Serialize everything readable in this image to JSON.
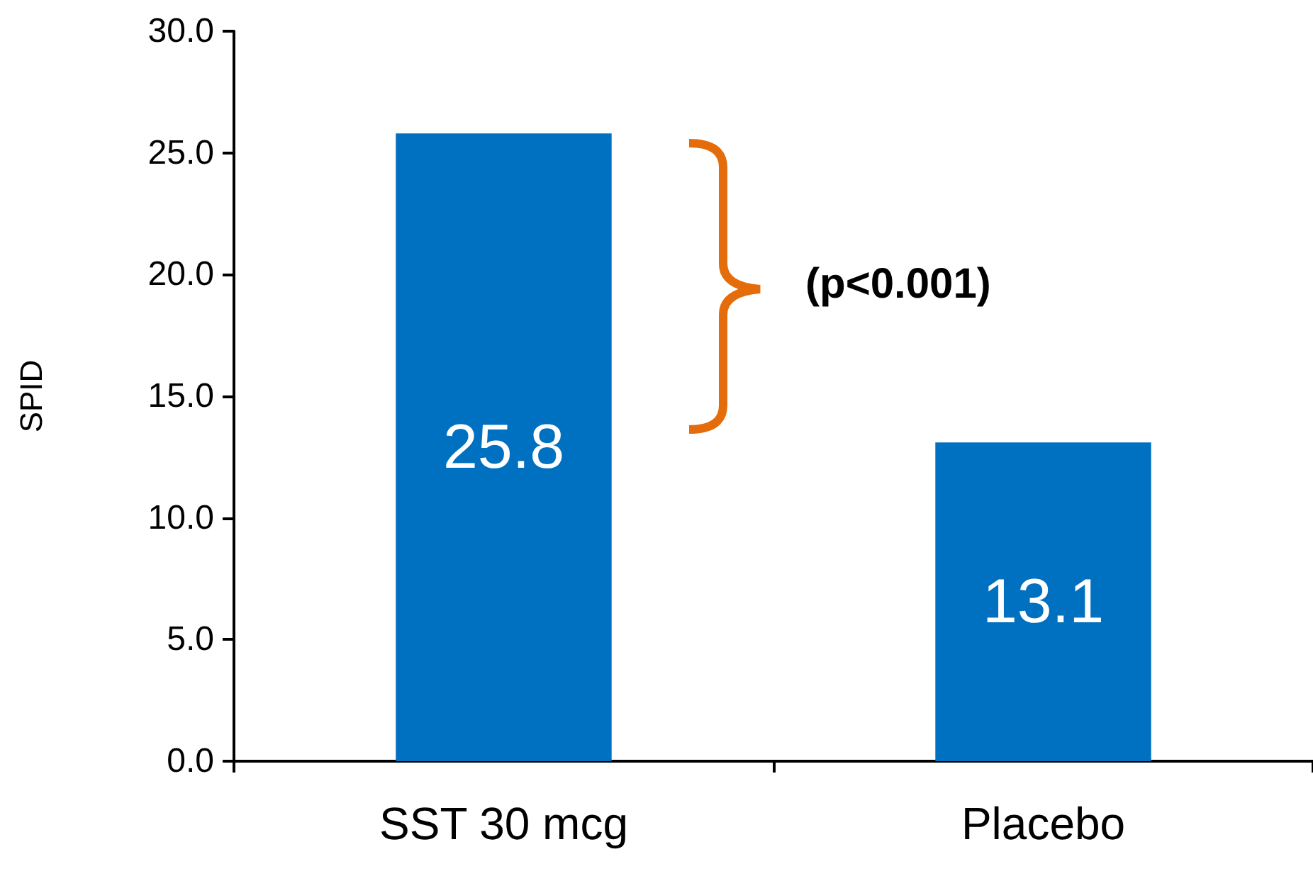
{
  "chart_data": {
    "type": "bar",
    "ylabel": "SPID",
    "categories": [
      "SST 30 mcg",
      "Placebo"
    ],
    "values": [
      25.8,
      13.1
    ],
    "color": "#0070c0",
    "ylim": [
      0,
      30
    ],
    "yticks": [
      {
        "value": 0,
        "label": "0.0"
      },
      {
        "value": 5,
        "label": "5.0"
      },
      {
        "value": 10,
        "label": "10.0"
      },
      {
        "value": 15,
        "label": "15.0"
      },
      {
        "value": 20,
        "label": "20.0"
      },
      {
        "value": 25,
        "label": "25.0"
      },
      {
        "value": 30,
        "label": "30.0"
      }
    ],
    "data_labels": true,
    "annotations": [
      "(p<0.001)"
    ]
  }
}
